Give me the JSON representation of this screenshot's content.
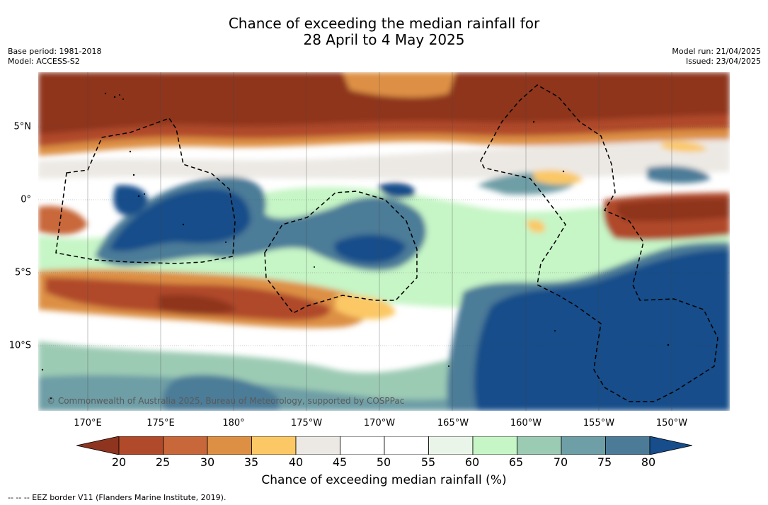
{
  "title_line1": "Chance of exceeding the median rainfall for",
  "title_line2": "28 April to 4 May 2025",
  "meta": {
    "base_period": "Base period: 1981-2018",
    "model": "Model: ACCESS-S2",
    "model_run": "Model run: 21/04/2025",
    "issued": "Issued: 23/04/2025"
  },
  "copyright": "© Commonwealth of Australia 2025, Bureau of Meteorology, supported by COSPPac",
  "longitudes": [
    "170°E",
    "175°E",
    "180°",
    "175°W",
    "170°W",
    "165°W",
    "160°W",
    "155°W",
    "150°W"
  ],
  "latitudes": [
    "5°N",
    "0°",
    "5°S",
    "10°S"
  ],
  "colorbar": {
    "ticks": [
      "20",
      "25",
      "30",
      "35",
      "40",
      "45",
      "50",
      "55",
      "60",
      "65",
      "70",
      "75",
      "80"
    ],
    "colors": [
      "#8f341f",
      "#b04a2a",
      "#c8673a",
      "#dd9044",
      "#fbc865",
      "#ece9e4",
      "#ffffff",
      "#ffffff",
      "#e8f5e8",
      "#c6f5c6",
      "#9ccbb4",
      "#6e9ea6",
      "#4c7b98",
      "#164d8a"
    ],
    "label": "Chance of exceeding median rainfall (%)"
  },
  "legend_note": "--  --  -- EEZ border V11 (Flanders Marine Institute, 2019)."
}
